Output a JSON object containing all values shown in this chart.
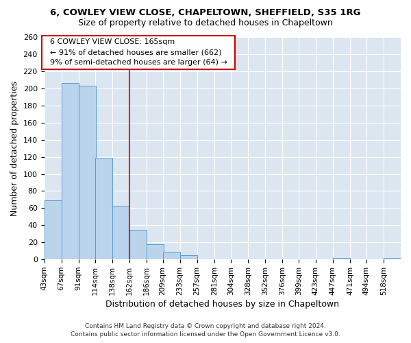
{
  "title1": "6, COWLEY VIEW CLOSE, CHAPELTOWN, SHEFFIELD, S35 1RG",
  "title2": "Size of property relative to detached houses in Chapeltown",
  "xlabel": "Distribution of detached houses by size in Chapeltown",
  "ylabel": "Number of detached properties",
  "bins": [
    43,
    67,
    91,
    114,
    138,
    162,
    186,
    209,
    233,
    257,
    281,
    304,
    328,
    352,
    376,
    399,
    423,
    447,
    471,
    494,
    518
  ],
  "bin_width": 24,
  "counts": [
    69,
    206,
    203,
    119,
    63,
    35,
    18,
    9,
    5,
    0,
    0,
    0,
    0,
    0,
    0,
    0,
    0,
    2,
    0,
    0,
    2
  ],
  "bar_color": "#bad4ec",
  "bar_edge_color": "#5b9bd5",
  "background_color": "#dce6f1",
  "red_line_x": 162,
  "annotation_title": "6 COWLEY VIEW CLOSE: 165sqm",
  "annotation_line1": "← 91% of detached houses are smaller (662)",
  "annotation_line2": "9% of semi-detached houses are larger (64) →",
  "annotation_box_facecolor": "#ffffff",
  "annotation_box_edgecolor": "#cc0000",
  "footer1": "Contains HM Land Registry data © Crown copyright and database right 2024.",
  "footer2": "Contains public sector information licensed under the Open Government Licence v3.0.",
  "ylim": [
    0,
    260
  ],
  "yticks": [
    0,
    20,
    40,
    60,
    80,
    100,
    120,
    140,
    160,
    180,
    200,
    220,
    240,
    260
  ]
}
